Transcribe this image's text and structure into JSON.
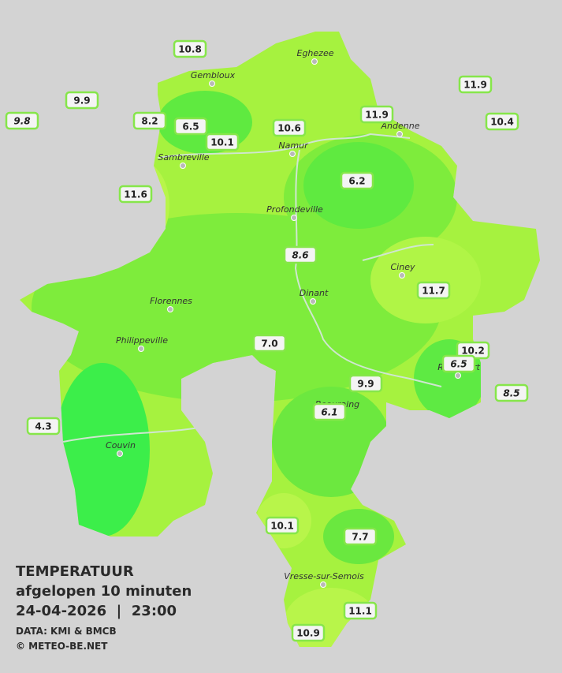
{
  "legend": {
    "title": "TEMPERATUUR",
    "subtitle": "afgelopen 10 minuten",
    "datetime": "24-04-2026  |  23:00",
    "source": "DATA: KMI & BMCB",
    "credit": "© METEO-BE.NET"
  },
  "cities": [
    "Eghezee",
    "Gembloux",
    "Andenne",
    "Namur",
    "Sambreville",
    "Profondeville",
    "Ciney",
    "Dinant",
    "Florennes",
    "Philippeville",
    "Rochefort",
    "Beauraing",
    "Couvin",
    "Vresse-sur-Semois"
  ],
  "stations": [
    {
      "value": "10.8"
    },
    {
      "value": "9.9"
    },
    {
      "value": "9.8",
      "italic": true
    },
    {
      "value": "8.2"
    },
    {
      "value": "6.5"
    },
    {
      "value": "10.1"
    },
    {
      "value": "10.6"
    },
    {
      "value": "11.9"
    },
    {
      "value": "11.9"
    },
    {
      "value": "10.4"
    },
    {
      "value": "11.6"
    },
    {
      "value": "6.2"
    },
    {
      "value": "8.6",
      "italic": true
    },
    {
      "value": "11.7"
    },
    {
      "value": "7.0"
    },
    {
      "value": "10.2"
    },
    {
      "value": "6.5",
      "italic": true
    },
    {
      "value": "9.9"
    },
    {
      "value": "6.1",
      "italic": true
    },
    {
      "value": "8.5",
      "italic": true
    },
    {
      "value": "4.3"
    },
    {
      "value": "10.1"
    },
    {
      "value": "7.7"
    },
    {
      "value": "11.1"
    },
    {
      "value": "10.9"
    }
  ]
}
